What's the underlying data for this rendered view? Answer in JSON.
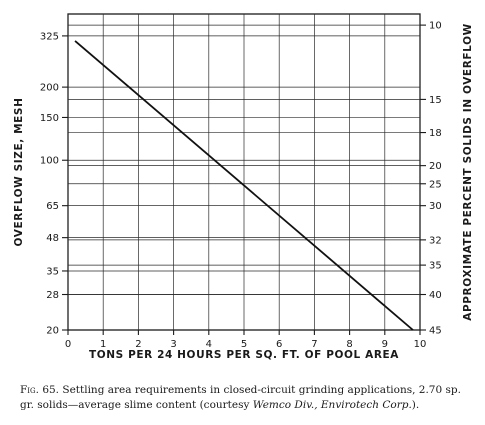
{
  "chart_data": {
    "type": "line",
    "x_axis": {
      "label": "TONS PER 24 HOURS PER SQ. FT. OF POOL AREA",
      "range": [
        0,
        10
      ],
      "ticks": [
        "0",
        "1",
        "2",
        "3",
        "4",
        "5",
        "6",
        "7",
        "8",
        "9",
        "10"
      ]
    },
    "y_left_axis": {
      "label": "OVERFLOW SIZE, MESH",
      "scale": "log",
      "range": [
        20,
        400
      ],
      "ticks": [
        325,
        200,
        150,
        100,
        65,
        48,
        35,
        28,
        20
      ]
    },
    "y_right_axis": {
      "label": "APPROXIMATE PERCENT SOLIDS IN OVERFLOW",
      "ticks": [
        10,
        15,
        18,
        20,
        25,
        30,
        32,
        35,
        40,
        45
      ],
      "tick_at_mesh": [
        360,
        178,
        130,
        95,
        80,
        65,
        47,
        37,
        28,
        20
      ]
    },
    "series": [
      {
        "x": [
          0.2,
          9.8
        ],
        "y": [
          310,
          20
        ]
      }
    ],
    "grid": true
  },
  "caption": {
    "fig_label": "Fig. 65.",
    "text": "Settling area requirements in closed-circuit grinding applications, 2.70 sp. gr. solids—average slime content (courtesy ",
    "credit_1": "Wemco Div., Envirotech Corp.",
    "text_end": ")."
  }
}
